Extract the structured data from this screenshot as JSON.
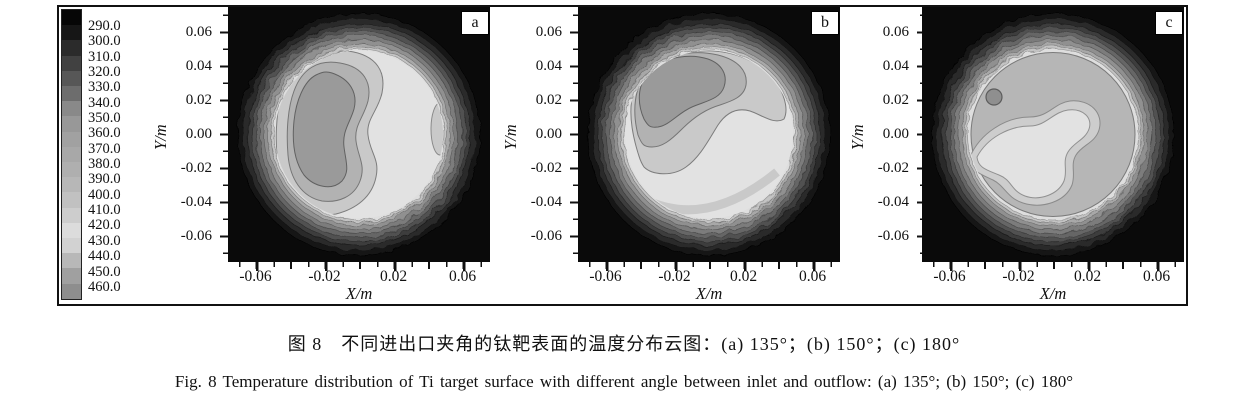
{
  "figure": {
    "caption_zh": "图 8　不同进出口夹角的钛靶表面的温度分布云图：(a) 135°；(b) 150°；(c) 180°",
    "caption_en": "Fig. 8   Temperature distribution of Ti target surface with different angle between inlet and outflow:  (a) 135°;  (b) 150°;  (c) 180°"
  },
  "colorbar": {
    "labels": [
      "290.0",
      "300.0",
      "310.0",
      "320.0",
      "330.0",
      "340.0",
      "350.0",
      "360.0",
      "370.0",
      "380.0",
      "390.0",
      "400.0",
      "410.0",
      "420.0",
      "430.0",
      "440.0",
      "450.0",
      "460.0"
    ],
    "blocks": [
      {
        "color": "#060606"
      },
      {
        "color": "#161616"
      },
      {
        "color": "#2b2b2b"
      },
      {
        "color": "#414141"
      },
      {
        "color": "#575757"
      },
      {
        "color": "#6d6d6d"
      },
      {
        "color": "#898989"
      },
      {
        "color": "#989898"
      },
      {
        "color": "#a1a1a1"
      },
      {
        "color": "#a8a8a8"
      },
      {
        "color": "#afafaf"
      },
      {
        "color": "#b7b7b7"
      },
      {
        "color": "#c1c1c1"
      },
      {
        "color": "#cdcdcd"
      },
      {
        "color": "#dcdcdc"
      },
      {
        "color": "#d2d2d2"
      },
      {
        "color": "#b8b8b8"
      },
      {
        "color": "#a0a0a0"
      },
      {
        "color": "#8e8e8e"
      }
    ]
  },
  "axes": {
    "x": {
      "title": "X/m",
      "tick_labels": [
        "-0.06",
        "-0.02",
        "0.02",
        "0.06"
      ]
    },
    "y": {
      "title": "Y/m",
      "tick_labels": [
        "0.06",
        "0.04",
        "0.02",
        "0.00",
        "-0.02",
        "-0.04",
        "-0.06"
      ]
    }
  },
  "plots": [
    {
      "letter": "a",
      "angle": "135°"
    },
    {
      "letter": "b",
      "angle": "150°"
    },
    {
      "letter": "c",
      "angle": "180°"
    }
  ],
  "chart_data": {
    "type": "heatmap",
    "subtype": "filled-contour",
    "title": "Temperature distribution of Ti target surface",
    "colormap": "grayscale, black at 290 K rising to lightest at ~420 K then darkening again to 460 K",
    "colorbar_levels": [
      290,
      300,
      310,
      320,
      330,
      340,
      350,
      360,
      370,
      380,
      390,
      400,
      410,
      420,
      430,
      440,
      450,
      460
    ],
    "legend_position": "left",
    "panels": [
      {
        "label": "a",
        "angle_between_inlet_and_outflow": 135,
        "xlabel": "X/m",
        "ylabel": "Y/m",
        "xlim": [
          -0.075,
          0.075
        ],
        "ylim": [
          -0.075,
          0.075
        ],
        "x_ticks": [
          -0.06,
          -0.02,
          0.02,
          0.06
        ],
        "y_ticks": [
          0.06,
          0.04,
          0.02,
          0.0,
          -0.02,
          -0.04,
          -0.06
        ],
        "target_disk_radius_m": 0.07,
        "edge_value_K": 290,
        "max_value_K": 460,
        "hot_region": {
          "x": -0.03,
          "y": 0.0,
          "value_K": 455,
          "shape": "large kidney-shaped zone covering the left half of the disk"
        },
        "cool_interior_region": {
          "x": 0.035,
          "y": -0.01,
          "value_K": 420,
          "shape": "S-shaped light band on the right side"
        }
      },
      {
        "label": "b",
        "angle_between_inlet_and_outflow": 150,
        "xlabel": "X/m",
        "ylabel": "Y/m",
        "xlim": [
          -0.075,
          0.075
        ],
        "ylim": [
          -0.075,
          0.075
        ],
        "x_ticks": [
          -0.06,
          -0.02,
          0.02,
          0.06
        ],
        "y_ticks": [
          0.06,
          0.04,
          0.02,
          0.0,
          -0.02,
          -0.04,
          -0.06
        ],
        "target_disk_radius_m": 0.07,
        "edge_value_K": 290,
        "max_value_K": 455,
        "hot_region": {
          "x": -0.025,
          "y": 0.03,
          "value_K": 455,
          "shape": "elongated zone in the upper-left quadrant"
        },
        "cool_interior_region": {
          "x": 0.01,
          "y": -0.03,
          "value_K": 420,
          "shape": "broad light region sweeping from centre to bottom"
        }
      },
      {
        "label": "c",
        "angle_between_inlet_and_outflow": 180,
        "xlabel": "X/m",
        "ylabel": "Y/m",
        "xlim": [
          -0.075,
          0.075
        ],
        "ylim": [
          -0.075,
          0.075
        ],
        "x_ticks": [
          -0.06,
          -0.02,
          0.02,
          0.06
        ],
        "y_ticks": [
          0.06,
          0.04,
          0.02,
          0.0,
          -0.02,
          -0.04,
          -0.06
        ],
        "target_disk_radius_m": 0.07,
        "edge_value_K": 290,
        "max_value_K": 450,
        "hot_region": {
          "x": -0.035,
          "y": 0.022,
          "value_K": 450,
          "shape": "small isolated spot upper-left; rest of disk fairly uniform ~440"
        },
        "cool_interior_region": {
          "x": 0.0,
          "y": -0.025,
          "value_K": 420,
          "shape": "irregular light pool in centre-bottom of disk"
        }
      }
    ]
  }
}
